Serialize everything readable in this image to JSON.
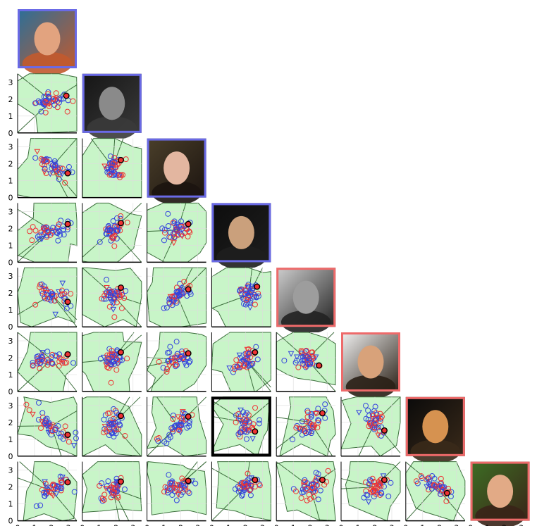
{
  "chart_data": {
    "type": "scatter",
    "title": "",
    "xlabel": "",
    "ylabel": "",
    "xlim": [
      0,
      3.5
    ],
    "ylim": [
      0,
      3.5
    ],
    "x_ticks": [
      "0",
      "1",
      "2",
      "3"
    ],
    "y_ticks": [
      "0",
      "1",
      "2",
      "3"
    ],
    "grid": true,
    "legend": "none",
    "colors": {
      "region_fill": "#c8f5c8",
      "boundary": "#3c6e3c",
      "class_a": "#3344dd",
      "class_b": "#ee3333",
      "highlight": "#000000",
      "grid": "#dddddd",
      "frame_a": "#6a6ae6",
      "frame_b": "#ee6a6a"
    },
    "diagonal": [
      {
        "id": 1,
        "class": "a",
        "photo": "face-photo",
        "tone": [
          "#2a6f99",
          "#c25a2e",
          "#e2a37f"
        ]
      },
      {
        "id": 2,
        "class": "a",
        "photo": "face-photo",
        "tone": [
          "#151515",
          "#3a3a3a",
          "#8a8a8a"
        ]
      },
      {
        "id": 3,
        "class": "a",
        "photo": "face-photo",
        "tone": [
          "#4a3f2a",
          "#1c1410",
          "#e3b6a0"
        ]
      },
      {
        "id": 4,
        "class": "a",
        "photo": "face-photo",
        "tone": [
          "#0d0d0d",
          "#1e1e1e",
          "#caa07c"
        ]
      },
      {
        "id": 5,
        "class": "b",
        "photo": "face-photo",
        "tone": [
          "#cfcfcf",
          "#222222",
          "#9d9d9d"
        ]
      },
      {
        "id": 6,
        "class": "b",
        "photo": "face-photo",
        "tone": [
          "#f2f2f2",
          "#2a2016",
          "#d8a27a"
        ]
      },
      {
        "id": 7,
        "class": "b",
        "photo": "face-photo",
        "tone": [
          "#0a0a0a",
          "#3a2a1a",
          "#d69250"
        ]
      },
      {
        "id": 8,
        "class": "b",
        "photo": "face-photo",
        "tone": [
          "#3d6e24",
          "#3a2418",
          "#e2aa86"
        ]
      }
    ],
    "highlighted_panel": {
      "row": 7,
      "col": 4
    },
    "panels": [
      {
        "row": 2,
        "col": 1,
        "center": [
          2.0,
          1.9
        ],
        "spread": [
          0.55,
          0.25
        ],
        "corr": 0.1
      },
      {
        "row": 3,
        "col": 1,
        "center": [
          2.0,
          1.8
        ],
        "spread": [
          0.6,
          0.3
        ],
        "corr": -0.6
      },
      {
        "row": 3,
        "col": 2,
        "center": [
          1.8,
          1.8
        ],
        "spread": [
          0.3,
          0.35
        ],
        "corr": 0.2
      },
      {
        "row": 4,
        "col": 1,
        "center": [
          2.0,
          1.9
        ],
        "spread": [
          0.6,
          0.3
        ],
        "corr": 0.6
      },
      {
        "row": 4,
        "col": 2,
        "center": [
          1.8,
          1.9
        ],
        "spread": [
          0.3,
          0.35
        ],
        "corr": 0.3
      },
      {
        "row": 4,
        "col": 3,
        "center": [
          1.8,
          1.9
        ],
        "spread": [
          0.4,
          0.3
        ],
        "corr": 0.1
      },
      {
        "row": 5,
        "col": 1,
        "center": [
          2.0,
          1.9
        ],
        "spread": [
          0.6,
          0.35
        ],
        "corr": -0.5
      },
      {
        "row": 5,
        "col": 2,
        "center": [
          1.8,
          1.9
        ],
        "spread": [
          0.3,
          0.35
        ],
        "corr": 0.1
      },
      {
        "row": 5,
        "col": 3,
        "center": [
          1.8,
          1.8
        ],
        "spread": [
          0.4,
          0.35
        ],
        "corr": 0.5
      },
      {
        "row": 5,
        "col": 4,
        "center": [
          2.2,
          1.9
        ],
        "spread": [
          0.3,
          0.4
        ],
        "corr": 0.0
      },
      {
        "row": 6,
        "col": 1,
        "center": [
          2.0,
          1.9
        ],
        "spread": [
          0.6,
          0.25
        ],
        "corr": 0.2
      },
      {
        "row": 6,
        "col": 2,
        "center": [
          1.8,
          1.9
        ],
        "spread": [
          0.3,
          0.35
        ],
        "corr": 0.1
      },
      {
        "row": 6,
        "col": 3,
        "center": [
          1.8,
          1.9
        ],
        "spread": [
          0.4,
          0.3
        ],
        "corr": 0.1
      },
      {
        "row": 6,
        "col": 4,
        "center": [
          2.0,
          1.9
        ],
        "spread": [
          0.35,
          0.35
        ],
        "corr": 0.4
      },
      {
        "row": 6,
        "col": 5,
        "center": [
          1.8,
          1.9
        ],
        "spread": [
          0.45,
          0.3
        ],
        "corr": -0.3
      },
      {
        "row": 7,
        "col": 1,
        "center": [
          2.0,
          1.8
        ],
        "spread": [
          0.6,
          0.45
        ],
        "corr": -0.8
      },
      {
        "row": 7,
        "col": 2,
        "center": [
          1.8,
          1.9
        ],
        "spread": [
          0.3,
          0.4
        ],
        "corr": 0.2
      },
      {
        "row": 7,
        "col": 3,
        "center": [
          1.8,
          1.8
        ],
        "spread": [
          0.4,
          0.45
        ],
        "corr": 0.7
      },
      {
        "row": 7,
        "col": 4,
        "center": [
          2.0,
          2.0
        ],
        "spread": [
          0.35,
          0.45
        ],
        "corr": -0.2
      },
      {
        "row": 7,
        "col": 5,
        "center": [
          2.0,
          2.0
        ],
        "spread": [
          0.45,
          0.45
        ],
        "corr": 0.6
      },
      {
        "row": 7,
        "col": 6,
        "center": [
          2.0,
          2.0
        ],
        "spread": [
          0.35,
          0.4
        ],
        "corr": -0.4
      },
      {
        "row": 8,
        "col": 1,
        "center": [
          2.0,
          1.8
        ],
        "spread": [
          0.6,
          0.4
        ],
        "corr": 0.7
      },
      {
        "row": 8,
        "col": 2,
        "center": [
          1.8,
          1.9
        ],
        "spread": [
          0.3,
          0.35
        ],
        "corr": 0.2
      },
      {
        "row": 8,
        "col": 3,
        "center": [
          1.8,
          2.0
        ],
        "spread": [
          0.4,
          0.3
        ],
        "corr": 0.2
      },
      {
        "row": 8,
        "col": 4,
        "center": [
          2.0,
          2.0
        ],
        "spread": [
          0.35,
          0.35
        ],
        "corr": 0.5
      },
      {
        "row": 8,
        "col": 5,
        "center": [
          2.0,
          2.0
        ],
        "spread": [
          0.45,
          0.35
        ],
        "corr": 0.4
      },
      {
        "row": 8,
        "col": 6,
        "center": [
          2.0,
          2.0
        ],
        "spread": [
          0.35,
          0.35
        ],
        "corr": 0.4
      },
      {
        "row": 8,
        "col": 7,
        "center": [
          1.8,
          2.0
        ],
        "spread": [
          0.4,
          0.3
        ],
        "corr": -0.5
      }
    ]
  }
}
